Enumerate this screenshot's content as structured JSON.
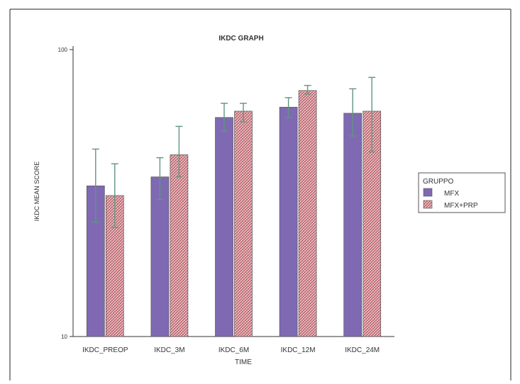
{
  "chart_data": {
    "type": "bar",
    "title": "IKDC GRAPH",
    "xlabel": "TIME",
    "ylabel": "IKDC MEAN SCORE",
    "y_scale": "log",
    "ylim": [
      10,
      100
    ],
    "yticks": [
      "10",
      "100"
    ],
    "grid": false,
    "legend_position": "right",
    "legend_title": "GRUPPO",
    "categories": [
      "IKDC_PREOP",
      "IKDC_3M",
      "IKDC_6M",
      "IKDC_12M",
      "IKDC_24M"
    ],
    "series": [
      {
        "name": "MFX",
        "color": "#7f69b3",
        "values": [
          33.5,
          36,
          58,
          63,
          60
        ],
        "error_low": [
          25,
          30,
          52,
          58,
          50
        ],
        "error_high": [
          45,
          42,
          65,
          68,
          73
        ]
      },
      {
        "name": "MFX+PRP",
        "color": "#b85c66",
        "values": [
          31,
          43,
          61,
          72,
          61
        ],
        "error_low": [
          24,
          36,
          56,
          70,
          44
        ],
        "error_high": [
          40,
          54,
          65,
          75,
          80
        ]
      }
    ],
    "error_bar_color": "#5f9680"
  }
}
